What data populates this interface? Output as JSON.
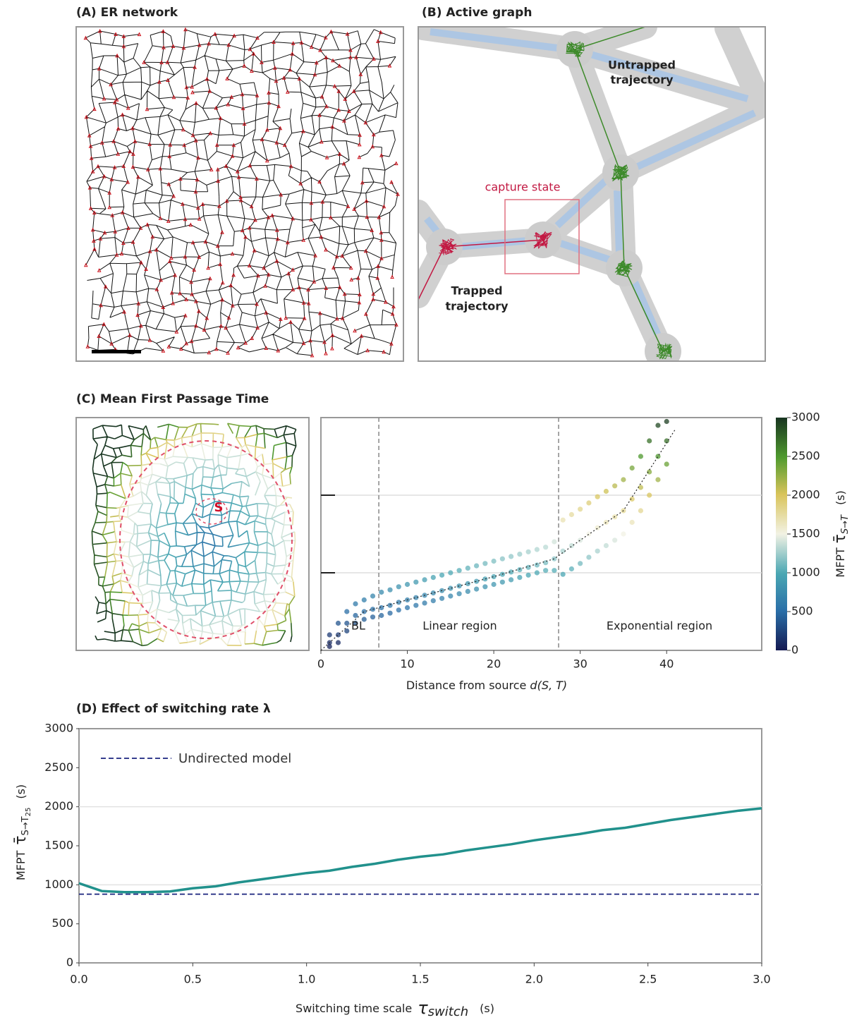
{
  "panels": {
    "A": {
      "title": "(A)  ER network"
    },
    "B": {
      "title": "(B)  Active graph",
      "untrapped": [
        "Untrapped",
        "trajectory"
      ],
      "capture": "capture state",
      "trapped": [
        "Trapped",
        "trajectory"
      ]
    },
    "C": {
      "title": "(C)  Mean First Passage Time",
      "source": "S"
    },
    "D": {
      "title": "(D)  Effect of switching rate λ"
    }
  },
  "chart_data": [
    {
      "type": "scatter",
      "x": [
        1,
        1,
        1,
        2,
        2,
        2,
        3,
        3,
        3,
        4,
        4,
        4,
        5,
        5,
        5,
        6,
        6,
        6,
        7,
        7,
        7,
        8,
        8,
        8,
        9,
        9,
        9,
        10,
        10,
        10,
        11,
        11,
        11,
        12,
        12,
        12,
        13,
        13,
        13,
        14,
        14,
        14,
        15,
        15,
        15,
        16,
        16,
        16,
        17,
        17,
        17,
        18,
        18,
        18,
        19,
        19,
        19,
        20,
        20,
        20,
        21,
        21,
        21,
        22,
        22,
        22,
        23,
        23,
        23,
        24,
        24,
        24,
        25,
        25,
        25,
        26,
        26,
        26,
        27,
        27,
        27,
        28,
        28,
        28,
        29,
        29,
        29,
        30,
        30,
        30,
        31,
        31,
        31,
        32,
        32,
        32,
        33,
        33,
        33,
        34,
        34,
        34,
        35,
        35,
        35,
        36,
        36,
        36,
        37,
        37,
        37,
        38,
        38,
        38,
        39,
        39,
        39,
        40,
        40,
        40
      ],
      "values": [
        50,
        100,
        200,
        100,
        200,
        350,
        250,
        350,
        500,
        350,
        450,
        600,
        400,
        500,
        650,
        430,
        530,
        700,
        450,
        550,
        750,
        480,
        580,
        780,
        520,
        620,
        820,
        550,
        650,
        850,
        580,
        680,
        880,
        610,
        710,
        910,
        640,
        740,
        940,
        670,
        770,
        970,
        700,
        800,
        1000,
        730,
        830,
        1030,
        760,
        860,
        1060,
        790,
        890,
        1090,
        820,
        920,
        1120,
        850,
        950,
        1150,
        880,
        980,
        1180,
        910,
        1010,
        1210,
        940,
        1040,
        1240,
        970,
        1070,
        1270,
        1000,
        1100,
        1300,
        1030,
        1130,
        1330,
        1030,
        1180,
        1400,
        980,
        1280,
        1680,
        1050,
        1350,
        1750,
        1120,
        1420,
        1820,
        1200,
        1500,
        1900,
        1280,
        1580,
        1980,
        1350,
        1650,
        2050,
        1420,
        1720,
        2120,
        1500,
        1800,
        2200,
        1650,
        1950,
        2350,
        1800,
        2100,
        2500,
        2000,
        2300,
        2700,
        2200,
        2500,
        2900,
        2400,
        2700,
        2950
      ],
      "mean": {
        "x": [
          0,
          5,
          10,
          20,
          27,
          30,
          35,
          41
        ],
        "values": [
          0,
          500,
          650,
          950,
          1180,
          1420,
          1800,
          2850
        ]
      },
      "boundaries": [
        6.7,
        27.5
      ],
      "region_labels": [
        "BL",
        "Linear region",
        "Exponential region"
      ],
      "xlim": [
        0,
        51
      ],
      "ylim": [
        0,
        3000
      ],
      "xticks": [
        0,
        10,
        20,
        30,
        40
      ],
      "ygrid": [
        1000,
        2000
      ],
      "xlabel": {
        "text": "Distance from source ",
        "italic": "d(S, T)"
      },
      "colorbar": {
        "lim": [
          0,
          3000
        ],
        "ticks": [
          0,
          500,
          1000,
          1500,
          2000,
          2500,
          3000
        ],
        "label": {
          "prefix": "MFPT",
          "symbol": "τ̄",
          "subscript": "S→T",
          "unit": "(s)"
        }
      }
    },
    {
      "type": "line",
      "x": [
        0,
        0.1,
        0.2,
        0.3,
        0.4,
        0.5,
        0.6,
        0.7,
        0.8,
        0.9,
        1.0,
        1.1,
        1.2,
        1.3,
        1.4,
        1.5,
        1.6,
        1.7,
        1.8,
        1.9,
        2.0,
        2.1,
        2.2,
        2.3,
        2.4,
        2.5,
        2.6,
        2.7,
        2.8,
        2.9,
        3.0
      ],
      "series": [
        {
          "color": "#21918c",
          "values": [
            1020,
            920,
            905,
            905,
            915,
            955,
            980,
            1030,
            1070,
            1110,
            1150,
            1180,
            1230,
            1270,
            1320,
            1360,
            1390,
            1440,
            1480,
            1520,
            1570,
            1610,
            1650,
            1700,
            1730,
            1780,
            1830,
            1870,
            1910,
            1950,
            1980
          ]
        }
      ],
      "reference": {
        "name": "Undirected model",
        "value": 880,
        "color": "#1a237e"
      },
      "xlim": [
        0,
        3
      ],
      "ylim": [
        0,
        3000
      ],
      "xticks": [
        {
          "value": 0,
          "label": "0.0"
        },
        0.5,
        {
          "value": 1,
          "label": "1.0"
        },
        1.5,
        {
          "value": 2,
          "label": "2.0"
        },
        2.5,
        {
          "value": 3,
          "label": "3.0"
        }
      ],
      "yticks": [
        0,
        500,
        1000,
        1500,
        2000,
        2500,
        3000
      ],
      "ygrid": [
        1000,
        2000
      ],
      "xlabel": {
        "text": "Switching time scale",
        "symbol": "τ",
        "subscript": "switch",
        "unit": "(s)"
      },
      "ylabel": {
        "prefix": "MFPT",
        "symbol": "τ̄",
        "subscript": "S→T",
        "subsub": "25",
        "unit": "(s)"
      }
    }
  ]
}
